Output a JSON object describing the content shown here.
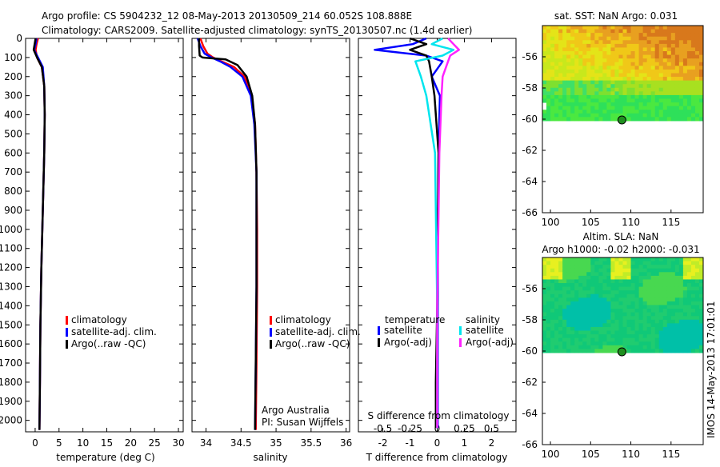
{
  "header": {
    "line1": "Argo profile: CS 5904232_12 08-May-2013 20130509_214 60.052S 108.888E",
    "line2": "Climatology: CARS2009. Satellite-adjusted climatology: synTS_20130507.nc (1.4d earlier)"
  },
  "side_label": "IMOS 14-May-2013 17:01:01",
  "colors": {
    "climatology": "#ff0000",
    "satellite": "#0000ff",
    "argo": "#000000",
    "sal_satellite": "#00e5ee",
    "sal_argo": "#ff22ff",
    "float_marker": "#1f8f1f"
  },
  "chart_data": [
    {
      "id": "temperature",
      "type": "line",
      "xlabel": "temperature (deg C)",
      "ylabel": "",
      "xlim": [
        -2,
        31
      ],
      "ylim": [
        2060,
        0
      ],
      "xticks": [
        0,
        5,
        10,
        15,
        20,
        25,
        30
      ],
      "yticks": [
        0,
        100,
        200,
        300,
        400,
        500,
        600,
        700,
        800,
        900,
        1000,
        1100,
        1200,
        1300,
        1400,
        1500,
        1600,
        1700,
        1800,
        1900,
        2000
      ],
      "legend": [
        "climatology",
        "satellite-adj. clim.",
        "Argo(..raw -QC)"
      ],
      "series": [
        {
          "name": "climatology",
          "color": "#ff0000",
          "x": [
            0.6,
            0.3,
            0.1,
            0.4,
            1.4,
            1.9,
            2.0,
            1.9,
            1.7,
            1.5,
            1.3,
            1.1,
            1.0,
            0.9
          ],
          "y": [
            0,
            30,
            60,
            100,
            150,
            250,
            400,
            600,
            800,
            1000,
            1200,
            1500,
            1800,
            2050
          ]
        },
        {
          "name": "satellite-adj. clim.",
          "color": "#0000ff",
          "x": [
            0.3,
            0.1,
            -0.2,
            0.6,
            1.6,
            1.9,
            2.0,
            1.9,
            1.7,
            1.5,
            1.3,
            1.1,
            1.0,
            0.9
          ],
          "y": [
            0,
            30,
            60,
            100,
            150,
            250,
            400,
            600,
            800,
            1000,
            1200,
            1500,
            1800,
            2050
          ]
        },
        {
          "name": "Argo(..raw -QC)",
          "color": "#000000",
          "x": [
            0.1,
            -0.1,
            -0.3,
            0.4,
            1.4,
            1.9,
            2.0,
            1.9,
            1.7,
            1.5,
            1.3,
            1.1,
            1.0,
            0.9
          ],
          "y": [
            0,
            30,
            60,
            100,
            150,
            250,
            400,
            600,
            800,
            1000,
            1200,
            1500,
            1800,
            2050
          ]
        }
      ]
    },
    {
      "id": "salinity",
      "type": "line",
      "xlabel": "salinity",
      "ylabel": "",
      "xlim": [
        33.8,
        36.05
      ],
      "ylim": [
        2060,
        0
      ],
      "xticks": [
        34,
        34.5,
        35,
        35.5,
        36
      ],
      "xticklabels": [
        "34",
        "34.5",
        "35",
        "35.5",
        "36"
      ],
      "legend": [
        "climatology",
        "satellite-adj. clim.",
        "Argo(..raw -QC)"
      ],
      "texts": [
        "Argo Australia",
        "PI: Susan Wijffels"
      ],
      "series": [
        {
          "name": "climatology",
          "color": "#ff0000",
          "x": [
            33.92,
            33.96,
            34.02,
            34.1,
            34.22,
            34.4,
            34.55,
            34.65,
            34.7,
            34.72,
            34.73,
            34.73,
            34.72,
            34.71
          ],
          "y": [
            0,
            40,
            80,
            100,
            120,
            150,
            200,
            300,
            450,
            700,
            1000,
            1300,
            1700,
            2050
          ]
        },
        {
          "name": "satellite-adj. clim.",
          "color": "#0000ff",
          "x": [
            33.88,
            33.92,
            33.98,
            34.08,
            34.2,
            34.35,
            34.52,
            34.64,
            34.69,
            34.72,
            34.72,
            34.72,
            34.71,
            34.7
          ],
          "y": [
            0,
            40,
            80,
            100,
            120,
            150,
            200,
            300,
            450,
            700,
            1000,
            1300,
            1700,
            2050
          ]
        },
        {
          "name": "Argo(..raw -QC)",
          "color": "#000000",
          "x": [
            33.9,
            33.9,
            33.91,
            33.95,
            34.28,
            34.45,
            34.58,
            34.66,
            34.7,
            34.72,
            34.72,
            34.72,
            34.71,
            34.7
          ],
          "y": [
            0,
            40,
            90,
            100,
            110,
            140,
            200,
            300,
            450,
            700,
            1000,
            1300,
            1700,
            2050
          ]
        }
      ]
    },
    {
      "id": "difference",
      "type": "line",
      "xlabel": "T difference from climatology",
      "xlabel_top": "S difference from climatology",
      "xlim": [
        -2.9,
        2.9
      ],
      "ylim": [
        2060,
        0
      ],
      "xticks": [
        -2,
        -1,
        0,
        1,
        2
      ],
      "xticklabels": [
        "-2",
        "-1",
        "0",
        "1",
        "2"
      ],
      "secondary_xlim": [
        -0.725,
        0.725
      ],
      "secondary_xticks": [
        -0.5,
        -0.25,
        0,
        0.25,
        0.5
      ],
      "secondary_xticklabels": [
        "-0.5",
        "-0.25",
        "0",
        "0.25",
        "0.5"
      ],
      "legend": {
        "left_title": "temperature",
        "right_title": "salinity",
        "entries": [
          "satellite",
          "Argo(-adj)",
          "satellite",
          "Argo(-adj)"
        ]
      },
      "series": [
        {
          "name": "temperature satellite",
          "axis": "T",
          "color": "#0000ff",
          "x": [
            -0.4,
            -0.9,
            -2.3,
            -0.4,
            0.2,
            -0.2,
            0.1,
            0.05,
            0.03,
            0.02,
            0.02,
            0.02
          ],
          "y": [
            0,
            30,
            60,
            90,
            120,
            200,
            300,
            600,
            1000,
            1400,
            1800,
            2040
          ]
        },
        {
          "name": "temperature Argo(-adj)",
          "axis": "T",
          "color": "#000000",
          "x": [
            -1.0,
            -0.4,
            -1.0,
            -0.4,
            -0.3,
            -0.2,
            -0.1,
            0.05,
            0.02,
            0.0,
            -0.05,
            -0.05
          ],
          "y": [
            0,
            30,
            60,
            90,
            120,
            200,
            300,
            600,
            1000,
            1400,
            1800,
            2040
          ]
        },
        {
          "name": "salinity satellite",
          "axis": "S",
          "color": "#00e5ee",
          "x": [
            0.05,
            -0.05,
            0.15,
            0.05,
            -0.2,
            -0.15,
            -0.1,
            -0.02,
            -0.01,
            0.0,
            0.0,
            0.0
          ],
          "y": [
            0,
            30,
            60,
            90,
            120,
            200,
            300,
            600,
            1000,
            1400,
            1800,
            2040
          ]
        },
        {
          "name": "salinity Argo(-adj)",
          "axis": "S",
          "color": "#ff22ff",
          "x": [
            0.1,
            0.15,
            0.2,
            0.12,
            0.1,
            0.05,
            0.04,
            0.02,
            0.01,
            0.0,
            0.0,
            0.0
          ],
          "y": [
            0,
            30,
            60,
            90,
            120,
            200,
            300,
            600,
            1000,
            1400,
            1800,
            2040
          ]
        }
      ]
    },
    {
      "id": "sst_map",
      "type": "heatmap",
      "title": "sat. SST: NaN Argo: 0.031",
      "xlim": [
        99,
        119
      ],
      "ylim": [
        -66,
        -54
      ],
      "xticks": [
        100,
        105,
        110,
        115
      ],
      "yticks": [
        -56,
        -58,
        -60,
        -62,
        -64,
        -66
      ],
      "float_position": {
        "lon": 108.888,
        "lat": -60.052
      }
    },
    {
      "id": "sla_map",
      "type": "heatmap",
      "title_line1": "Altim. SLA: NaN",
      "title_line2": "Argo h1000: -0.02 h2000: -0.031",
      "xlim": [
        99,
        119
      ],
      "ylim": [
        -66,
        -54
      ],
      "xticks": [
        100,
        105,
        110,
        115
      ],
      "yticks": [
        -56,
        -58,
        -60,
        -62,
        -64,
        -66
      ],
      "float_position": {
        "lon": 108.888,
        "lat": -60.052
      }
    }
  ]
}
